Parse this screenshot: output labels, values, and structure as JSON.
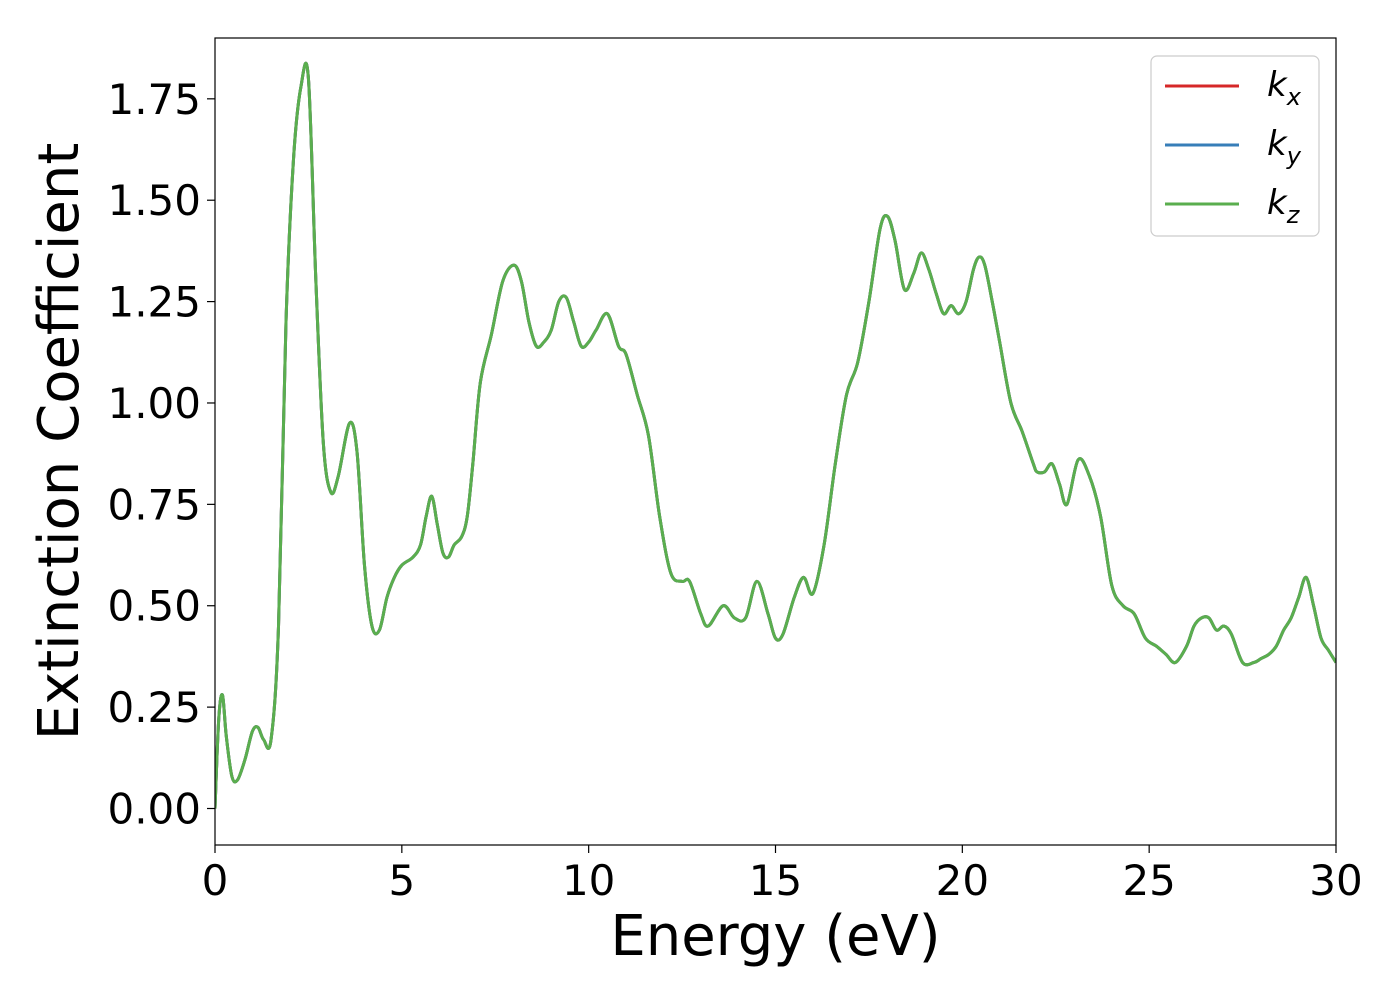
{
  "chart_data": {
    "type": "line",
    "xlabel": "Energy (eV)",
    "ylabel": "Extinction Coefficient",
    "xlim": [
      0,
      30
    ],
    "ylim": [
      -0.09,
      1.9
    ],
    "xticks": [
      0,
      5,
      10,
      15,
      20,
      25,
      30
    ],
    "xtick_labels": [
      "0",
      "5",
      "10",
      "15",
      "20",
      "25",
      "30"
    ],
    "yticks": [
      0.0,
      0.25,
      0.5,
      0.75,
      1.0,
      1.25,
      1.5,
      1.75
    ],
    "ytick_labels": [
      "0.00",
      "0.25",
      "0.50",
      "0.75",
      "1.00",
      "1.25",
      "1.50",
      "1.75"
    ],
    "grid": false,
    "legend_position": "top-right",
    "x": [
      0.0,
      0.1,
      0.2,
      0.3,
      0.45,
      0.6,
      0.8,
      1.0,
      1.15,
      1.3,
      1.5,
      1.7,
      1.9,
      2.1,
      2.3,
      2.5,
      2.7,
      2.9,
      3.1,
      3.3,
      3.6,
      3.8,
      4.0,
      4.2,
      4.4,
      4.6,
      4.8,
      5.0,
      5.3,
      5.5,
      5.65,
      5.8,
      5.95,
      6.1,
      6.25,
      6.4,
      6.6,
      6.75,
      6.9,
      7.1,
      7.4,
      7.7,
      8.0,
      8.2,
      8.4,
      8.6,
      8.8,
      9.0,
      9.2,
      9.4,
      9.6,
      9.8,
      10.0,
      10.2,
      10.5,
      10.8,
      11.0,
      11.3,
      11.6,
      11.9,
      12.2,
      12.5,
      12.7,
      13.0,
      13.2,
      13.6,
      13.9,
      14.2,
      14.5,
      14.8,
      15.0,
      15.2,
      15.5,
      15.75,
      16.0,
      16.3,
      16.6,
      16.9,
      17.2,
      17.5,
      17.8,
      18.0,
      18.2,
      18.45,
      18.7,
      18.9,
      19.1,
      19.3,
      19.5,
      19.7,
      19.9,
      20.1,
      20.3,
      20.45,
      20.6,
      20.8,
      21.0,
      21.3,
      21.6,
      21.9,
      22.0,
      22.2,
      22.4,
      22.6,
      22.8,
      23.1,
      23.4,
      23.7,
      24.0,
      24.3,
      24.6,
      24.9,
      25.2,
      25.45,
      25.7,
      26.0,
      26.2,
      26.4,
      26.6,
      26.8,
      27.0,
      27.2,
      27.5,
      27.8,
      28.0,
      28.2,
      28.4,
      28.6,
      28.8,
      29.0,
      29.2,
      29.4,
      29.6,
      29.8,
      30.0
    ],
    "series": [
      {
        "name": "k_x",
        "label_main": "k",
        "label_sub": "x",
        "color": "#d62728",
        "values": [
          0.0,
          0.22,
          0.28,
          0.18,
          0.08,
          0.07,
          0.12,
          0.19,
          0.2,
          0.17,
          0.17,
          0.45,
          1.2,
          1.6,
          1.78,
          1.8,
          1.3,
          0.9,
          0.78,
          0.82,
          0.95,
          0.88,
          0.6,
          0.45,
          0.44,
          0.52,
          0.57,
          0.6,
          0.62,
          0.65,
          0.72,
          0.77,
          0.7,
          0.63,
          0.62,
          0.65,
          0.67,
          0.72,
          0.85,
          1.05,
          1.17,
          1.3,
          1.34,
          1.3,
          1.2,
          1.14,
          1.15,
          1.18,
          1.25,
          1.26,
          1.2,
          1.14,
          1.15,
          1.18,
          1.22,
          1.14,
          1.12,
          1.02,
          0.92,
          0.72,
          0.58,
          0.56,
          0.56,
          0.48,
          0.45,
          0.5,
          0.47,
          0.47,
          0.56,
          0.48,
          0.42,
          0.43,
          0.52,
          0.57,
          0.53,
          0.65,
          0.85,
          1.02,
          1.1,
          1.25,
          1.43,
          1.46,
          1.4,
          1.28,
          1.32,
          1.37,
          1.33,
          1.27,
          1.22,
          1.24,
          1.22,
          1.25,
          1.33,
          1.36,
          1.34,
          1.25,
          1.15,
          1.0,
          0.93,
          0.85,
          0.83,
          0.83,
          0.85,
          0.8,
          0.75,
          0.86,
          0.82,
          0.72,
          0.55,
          0.5,
          0.48,
          0.42,
          0.4,
          0.38,
          0.36,
          0.4,
          0.45,
          0.47,
          0.47,
          0.44,
          0.45,
          0.43,
          0.36,
          0.36,
          0.37,
          0.38,
          0.4,
          0.44,
          0.47,
          0.52,
          0.57,
          0.5,
          0.42,
          0.39,
          0.36
        ]
      },
      {
        "name": "k_y",
        "label_main": "k",
        "label_sub": "y",
        "color": "#377eb8",
        "values": [
          0.0,
          0.22,
          0.28,
          0.18,
          0.08,
          0.07,
          0.12,
          0.19,
          0.2,
          0.17,
          0.17,
          0.45,
          1.2,
          1.6,
          1.78,
          1.8,
          1.3,
          0.9,
          0.78,
          0.82,
          0.95,
          0.88,
          0.6,
          0.45,
          0.44,
          0.52,
          0.57,
          0.6,
          0.62,
          0.65,
          0.72,
          0.77,
          0.7,
          0.63,
          0.62,
          0.65,
          0.67,
          0.72,
          0.85,
          1.05,
          1.17,
          1.3,
          1.34,
          1.3,
          1.2,
          1.14,
          1.15,
          1.18,
          1.25,
          1.26,
          1.2,
          1.14,
          1.15,
          1.18,
          1.22,
          1.14,
          1.12,
          1.02,
          0.92,
          0.72,
          0.58,
          0.56,
          0.56,
          0.48,
          0.45,
          0.5,
          0.47,
          0.47,
          0.56,
          0.48,
          0.42,
          0.43,
          0.52,
          0.57,
          0.53,
          0.65,
          0.85,
          1.02,
          1.1,
          1.25,
          1.43,
          1.46,
          1.4,
          1.28,
          1.32,
          1.37,
          1.33,
          1.27,
          1.22,
          1.24,
          1.22,
          1.25,
          1.33,
          1.36,
          1.34,
          1.25,
          1.15,
          1.0,
          0.93,
          0.85,
          0.83,
          0.83,
          0.85,
          0.8,
          0.75,
          0.86,
          0.82,
          0.72,
          0.55,
          0.5,
          0.48,
          0.42,
          0.4,
          0.38,
          0.36,
          0.4,
          0.45,
          0.47,
          0.47,
          0.44,
          0.45,
          0.43,
          0.36,
          0.36,
          0.37,
          0.38,
          0.4,
          0.44,
          0.47,
          0.52,
          0.57,
          0.5,
          0.42,
          0.39,
          0.36
        ]
      },
      {
        "name": "k_z",
        "label_main": "k",
        "label_sub": "z",
        "color": "#5aae4e",
        "values": [
          0.0,
          0.22,
          0.28,
          0.18,
          0.08,
          0.07,
          0.12,
          0.19,
          0.2,
          0.17,
          0.17,
          0.45,
          1.2,
          1.6,
          1.78,
          1.8,
          1.3,
          0.9,
          0.78,
          0.82,
          0.95,
          0.88,
          0.6,
          0.45,
          0.44,
          0.52,
          0.57,
          0.6,
          0.62,
          0.65,
          0.72,
          0.77,
          0.7,
          0.63,
          0.62,
          0.65,
          0.67,
          0.72,
          0.85,
          1.05,
          1.17,
          1.3,
          1.34,
          1.3,
          1.2,
          1.14,
          1.15,
          1.18,
          1.25,
          1.26,
          1.2,
          1.14,
          1.15,
          1.18,
          1.22,
          1.14,
          1.12,
          1.02,
          0.92,
          0.72,
          0.58,
          0.56,
          0.56,
          0.48,
          0.45,
          0.5,
          0.47,
          0.47,
          0.56,
          0.48,
          0.42,
          0.43,
          0.52,
          0.57,
          0.53,
          0.65,
          0.85,
          1.02,
          1.1,
          1.25,
          1.43,
          1.46,
          1.4,
          1.28,
          1.32,
          1.37,
          1.33,
          1.27,
          1.22,
          1.24,
          1.22,
          1.25,
          1.33,
          1.36,
          1.34,
          1.25,
          1.15,
          1.0,
          0.93,
          0.85,
          0.83,
          0.83,
          0.85,
          0.8,
          0.75,
          0.86,
          0.82,
          0.72,
          0.55,
          0.5,
          0.48,
          0.42,
          0.4,
          0.38,
          0.36,
          0.4,
          0.45,
          0.47,
          0.47,
          0.44,
          0.45,
          0.43,
          0.36,
          0.36,
          0.37,
          0.38,
          0.4,
          0.44,
          0.47,
          0.52,
          0.57,
          0.5,
          0.42,
          0.39,
          0.36
        ]
      }
    ]
  }
}
